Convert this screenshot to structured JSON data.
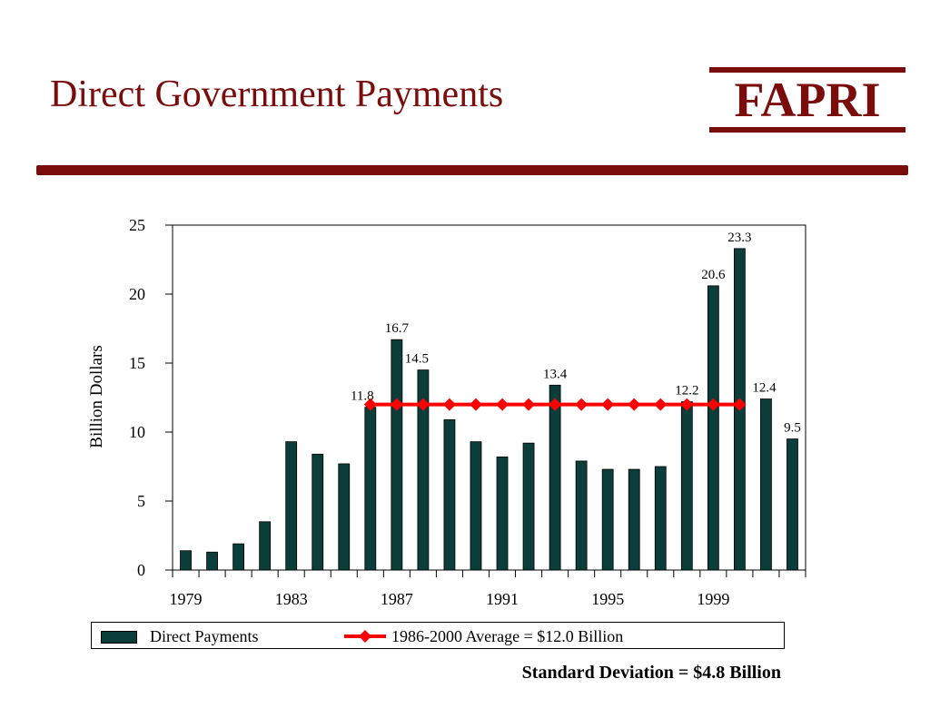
{
  "header": {
    "title": "Direct Government Payments",
    "logo": "FAPRI"
  },
  "footnote": "Standard Deviation = $4.8 Billion",
  "colors": {
    "bar": "#0b3d3a",
    "average": "#ff0000",
    "accent": "#7a0c0c"
  },
  "chart_data": {
    "type": "bar",
    "title": "",
    "xlabel": "",
    "ylabel": "Billion Dollars",
    "ylim": [
      0,
      25
    ],
    "yticks": [
      0,
      5,
      10,
      15,
      20,
      25
    ],
    "xtick_labels": [
      "1979",
      "1983",
      "1987",
      "1991",
      "1995",
      "1999"
    ],
    "categories": [
      1979,
      1980,
      1981,
      1982,
      1983,
      1984,
      1985,
      1986,
      1987,
      1988,
      1989,
      1990,
      1991,
      1992,
      1993,
      1994,
      1995,
      1996,
      1997,
      1998,
      1999,
      2000,
      2001,
      2002
    ],
    "series": [
      {
        "name": "Direct Payments",
        "type": "bar",
        "values": [
          1.4,
          1.3,
          1.9,
          3.5,
          9.3,
          8.4,
          7.7,
          11.8,
          16.7,
          14.5,
          10.9,
          9.3,
          8.2,
          9.2,
          13.4,
          7.9,
          7.3,
          7.3,
          7.5,
          12.2,
          20.6,
          23.3,
          12.4,
          9.5
        ],
        "data_labels": {
          "1986": "11.8",
          "1987": "16.7",
          "1988": "14.5",
          "1993": "13.4",
          "1998": "12.2",
          "1999": "20.6",
          "2000": "23.3",
          "2001": "12.4",
          "2002": "9.5"
        }
      },
      {
        "name": "1986-2000 Average = $12.0 Billion",
        "type": "line",
        "x": [
          1986,
          1987,
          1988,
          1989,
          1990,
          1991,
          1992,
          1993,
          1994,
          1995,
          1996,
          1997,
          1998,
          1999,
          2000
        ],
        "values": [
          12.0,
          12.0,
          12.0,
          12.0,
          12.0,
          12.0,
          12.0,
          12.0,
          12.0,
          12.0,
          12.0,
          12.0,
          12.0,
          12.0,
          12.0
        ]
      }
    ],
    "legend": "bottom"
  }
}
